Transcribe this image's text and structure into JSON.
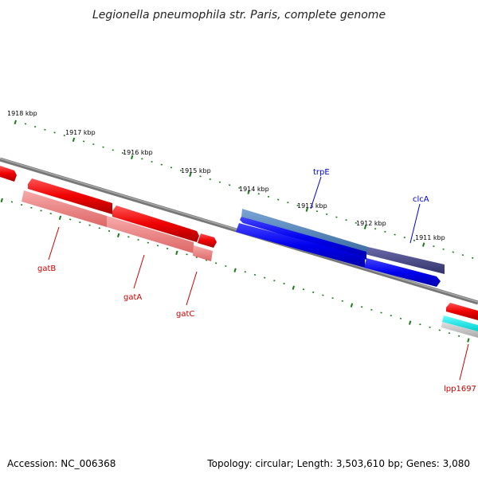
{
  "title": "Legionella pneumophila str. Paris, complete genome",
  "footer": {
    "accession": "Accession: NC_006368",
    "stats": "Topology: circular; Length: 3,503,610 bp; Genes: 3,080"
  },
  "colors": {
    "backbone": "#888888",
    "tick": "#1a7a1a",
    "forward_label": "#cc0000",
    "reverse_label": "#0000cc"
  },
  "kbp_ticks": [
    "1918 kbp",
    "1917 kbp",
    "1916 kbp",
    "1915 kbp",
    "1914 kbp",
    "1913 kbp",
    "1912 kbp",
    "1911 kbp"
  ],
  "gene_labels": [
    "trpE",
    "clcA",
    "gatB",
    "gatA",
    "gatC",
    "lpp1697"
  ]
}
